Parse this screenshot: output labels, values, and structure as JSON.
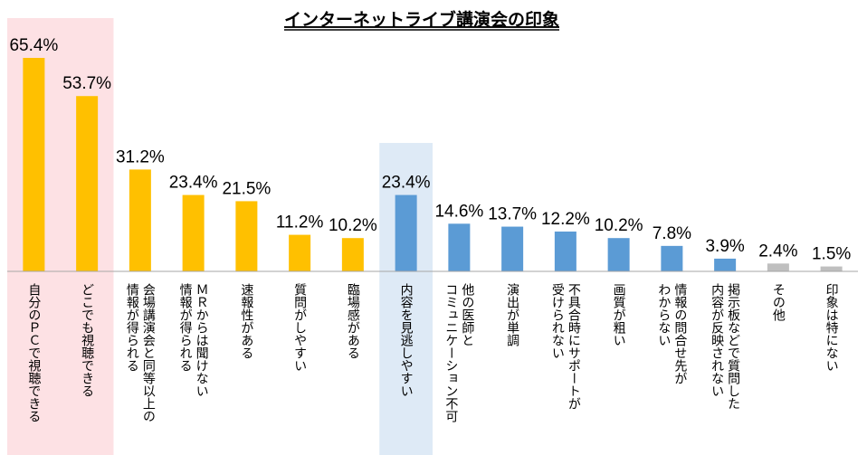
{
  "chart_data": {
    "type": "bar",
    "title": "インターネットライブ講演会の印象",
    "xlabel": "",
    "ylabel": "",
    "ylim": [
      0,
      70
    ],
    "unit": "%",
    "grid": false,
    "legend": "none",
    "categories": [
      [
        "自分のＰＣで視聴できる"
      ],
      [
        "どこでも視聴できる"
      ],
      [
        "会場講演会と同等以上の",
        "情報が得られる"
      ],
      [
        "ＭＲからは聞けない",
        "情報が得られる"
      ],
      [
        "速報性がある"
      ],
      [
        "質問がしやすい"
      ],
      [
        "臨場感がある"
      ],
      [
        "内容を見逃しやすい"
      ],
      [
        "他の医師と",
        "コミュニケーション不可"
      ],
      [
        "演出が単調"
      ],
      [
        "不具合時にサポートが",
        "受けられない"
      ],
      [
        "画質が粗い"
      ],
      [
        "情報の問合せ先が",
        "わからない"
      ],
      [
        "掲示板などで質問した",
        "内容が反映されない"
      ],
      [
        "その他"
      ],
      [
        "印象は特にない"
      ]
    ],
    "values": [
      65.4,
      53.7,
      31.2,
      23.4,
      21.5,
      11.2,
      10.2,
      23.4,
      14.6,
      13.7,
      12.2,
      10.2,
      7.8,
      3.9,
      2.4,
      1.5
    ],
    "value_labels": [
      "65.4%",
      "53.7%",
      "31.2%",
      "23.4%",
      "21.5%",
      "11.2%",
      "10.2%",
      "23.4%",
      "14.6%",
      "13.7%",
      "12.2%",
      "10.2%",
      "7.8%",
      "3.9%",
      "2.4%",
      "1.5%"
    ],
    "groups": [
      "positive",
      "positive",
      "positive",
      "positive",
      "positive",
      "positive",
      "positive",
      "negative",
      "negative",
      "negative",
      "negative",
      "negative",
      "negative",
      "negative",
      "other",
      "other"
    ],
    "colors": {
      "positive": "#FFC000",
      "negative": "#5B9BD5",
      "other": "#BFBFBF",
      "highlight_positive": "#FDE1E4",
      "highlight_negative": "#DEEAF6",
      "axis": "#A6A6A6"
    },
    "highlights": [
      {
        "from": 0,
        "to": 1,
        "color_key": "highlight_positive"
      },
      {
        "from": 7,
        "to": 7,
        "color_key": "highlight_negative"
      }
    ]
  }
}
